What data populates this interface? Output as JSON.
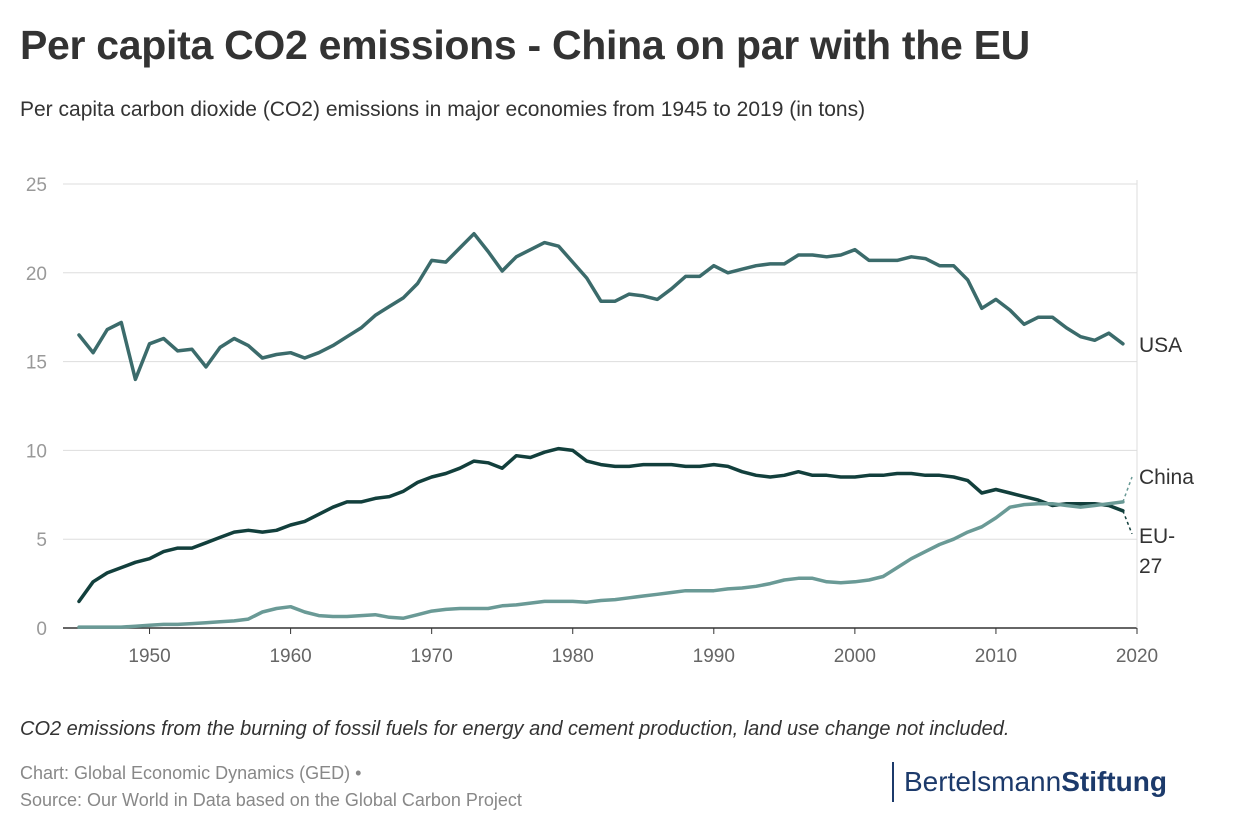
{
  "title": "Per capita CO2 emissions - China on par with the EU",
  "subtitle": "Per capita carbon dioxide (CO2) emissions in major economies from 1945 to 2019 (in tons)",
  "note": "CO2 emissions from the burning of fossil fuels for energy and cement production, land use change not included.",
  "credit": {
    "line1": "Chart: Global Economic Dynamics (GED) •",
    "line2": "Source: Our World in Data based on the Global Carbon Project"
  },
  "brand": {
    "part1": "Bertelsmann",
    "part2": "Stiftung",
    "color": "#1c3a6b"
  },
  "chart_data": {
    "type": "line",
    "xlim": [
      1945,
      2020
    ],
    "ylim": [
      0,
      25
    ],
    "y_ticks": [
      0,
      5,
      10,
      15,
      20,
      25
    ],
    "x_ticks": [
      1950,
      1960,
      1970,
      1980,
      1990,
      2000,
      2010,
      2020
    ],
    "grid": "horizontal",
    "legend": "direct labels at line ends",
    "x_start": 1945,
    "series": [
      {
        "name": "USA",
        "label_lines": [
          "USA"
        ],
        "color": "#3b6b6b",
        "values": [
          16.5,
          15.5,
          16.8,
          17.2,
          14.0,
          16.0,
          16.3,
          15.6,
          15.7,
          14.7,
          15.8,
          16.3,
          15.9,
          15.2,
          15.4,
          15.5,
          15.2,
          15.5,
          15.9,
          16.4,
          16.9,
          17.6,
          18.1,
          18.6,
          19.4,
          20.7,
          20.6,
          21.4,
          22.2,
          21.2,
          20.1,
          20.9,
          21.3,
          21.7,
          21.5,
          20.6,
          19.7,
          18.4,
          18.4,
          18.8,
          18.7,
          18.5,
          19.1,
          19.8,
          19.8,
          20.4,
          20.0,
          20.2,
          20.4,
          20.5,
          20.5,
          21.0,
          21.0,
          20.9,
          21.0,
          21.3,
          20.7,
          20.7,
          20.7,
          20.9,
          20.8,
          20.4,
          20.4,
          19.6,
          18.0,
          18.5,
          17.9,
          17.1,
          17.5,
          17.5,
          16.9,
          16.4,
          16.2,
          16.6,
          16.0
        ]
      },
      {
        "name": "EU-27",
        "label_lines": [
          "EU-",
          "27"
        ],
        "color": "#123f3c",
        "values": [
          1.5,
          2.6,
          3.1,
          3.4,
          3.7,
          3.9,
          4.3,
          4.5,
          4.5,
          4.8,
          5.1,
          5.4,
          5.5,
          5.4,
          5.5,
          5.8,
          6.0,
          6.4,
          6.8,
          7.1,
          7.1,
          7.3,
          7.4,
          7.7,
          8.2,
          8.5,
          8.7,
          9.0,
          9.4,
          9.3,
          9.0,
          9.7,
          9.6,
          9.9,
          10.1,
          10.0,
          9.4,
          9.2,
          9.1,
          9.1,
          9.2,
          9.2,
          9.2,
          9.1,
          9.1,
          9.2,
          9.1,
          8.8,
          8.6,
          8.5,
          8.6,
          8.8,
          8.6,
          8.6,
          8.5,
          8.5,
          8.6,
          8.6,
          8.7,
          8.7,
          8.6,
          8.6,
          8.5,
          8.3,
          7.6,
          7.8,
          7.6,
          7.4,
          7.2,
          6.9,
          7.0,
          7.0,
          7.0,
          6.9,
          6.6
        ]
      },
      {
        "name": "China",
        "label_lines": [
          "China"
        ],
        "color": "#6a9a96",
        "values": [
          0.05,
          0.05,
          0.05,
          0.05,
          0.1,
          0.15,
          0.2,
          0.2,
          0.25,
          0.3,
          0.35,
          0.4,
          0.5,
          0.9,
          1.1,
          1.2,
          0.9,
          0.7,
          0.65,
          0.65,
          0.7,
          0.75,
          0.6,
          0.55,
          0.75,
          0.95,
          1.05,
          1.1,
          1.1,
          1.1,
          1.25,
          1.3,
          1.4,
          1.5,
          1.5,
          1.5,
          1.45,
          1.55,
          1.6,
          1.7,
          1.8,
          1.9,
          2.0,
          2.1,
          2.1,
          2.1,
          2.2,
          2.25,
          2.35,
          2.5,
          2.7,
          2.8,
          2.8,
          2.6,
          2.55,
          2.6,
          2.7,
          2.9,
          3.4,
          3.9,
          4.3,
          4.7,
          5.0,
          5.4,
          5.7,
          6.2,
          6.8,
          6.95,
          7.0,
          7.0,
          6.9,
          6.8,
          6.9,
          7.0,
          7.1
        ]
      }
    ]
  }
}
